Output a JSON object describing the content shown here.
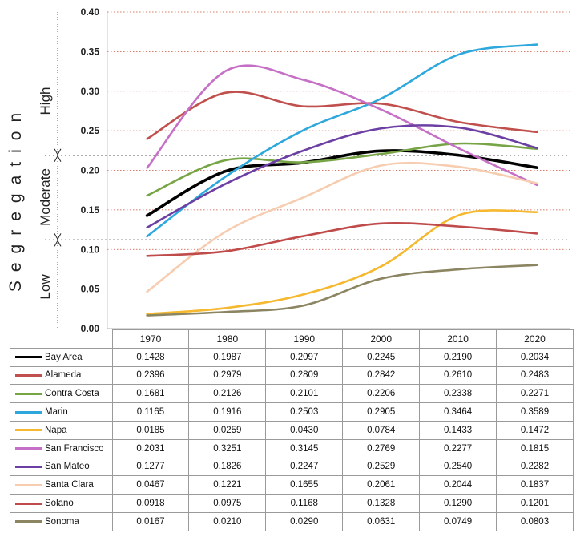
{
  "chart_data": {
    "type": "line",
    "title": "",
    "ylabel": "Segregation",
    "xlabel": "",
    "categories": [
      "1970",
      "1980",
      "1990",
      "2000",
      "2010",
      "2020"
    ],
    "ylim": [
      0,
      0.4
    ],
    "yticks": [
      "0.00",
      "0.05",
      "0.10",
      "0.15",
      "0.20",
      "0.25",
      "0.30",
      "0.35",
      "0.40"
    ],
    "bands": [
      {
        "label": "High",
        "from": 0.219,
        "to": 0.4
      },
      {
        "label": "Moderate",
        "from": 0.112,
        "to": 0.219
      },
      {
        "label": "Low",
        "from": 0,
        "to": 0.112
      }
    ],
    "thresholds": [
      0.219,
      0.112
    ],
    "grid": true,
    "series": [
      {
        "name": "Bay Area",
        "color": "#000000",
        "values": [
          "0.1428",
          "0.1987",
          "0.2097",
          "0.2245",
          "0.2190",
          "0.2034"
        ]
      },
      {
        "name": "Alameda",
        "color": "#c0504d",
        "values": [
          "0.2396",
          "0.2979",
          "0.2809",
          "0.2842",
          "0.2610",
          "0.2483"
        ]
      },
      {
        "name": "Contra Costa",
        "color": "#77a545",
        "values": [
          "0.1681",
          "0.2126",
          "0.2101",
          "0.2206",
          "0.2338",
          "0.2271"
        ]
      },
      {
        "name": "Marin",
        "color": "#2ea8dc",
        "values": [
          "0.1165",
          "0.1916",
          "0.2503",
          "0.2905",
          "0.3464",
          "0.3589"
        ]
      },
      {
        "name": "Napa",
        "color": "#f5b82e",
        "values": [
          "0.0185",
          "0.0259",
          "0.0430",
          "0.0784",
          "0.1433",
          "0.1472"
        ]
      },
      {
        "name": "San Francisco",
        "color": "#c56fc6",
        "values": [
          "0.2031",
          "0.3251",
          "0.3145",
          "0.2769",
          "0.2277",
          "0.1815"
        ]
      },
      {
        "name": "San Mateo",
        "color": "#6b3fa3",
        "values": [
          "0.1277",
          "0.1826",
          "0.2247",
          "0.2529",
          "0.2540",
          "0.2282"
        ]
      },
      {
        "name": "Santa Clara",
        "color": "#f6cdb1",
        "values": [
          "0.0467",
          "0.1221",
          "0.1655",
          "0.2061",
          "0.2044",
          "0.1837"
        ]
      },
      {
        "name": "Solano",
        "color": "#bf4b4b",
        "values": [
          "0.0918",
          "0.0975",
          "0.1168",
          "0.1328",
          "0.1290",
          "0.1201"
        ]
      },
      {
        "name": "Sonoma",
        "color": "#8b8562",
        "values": [
          "0.0167",
          "0.0210",
          "0.0290",
          "0.0631",
          "0.0749",
          "0.0803"
        ]
      }
    ]
  }
}
